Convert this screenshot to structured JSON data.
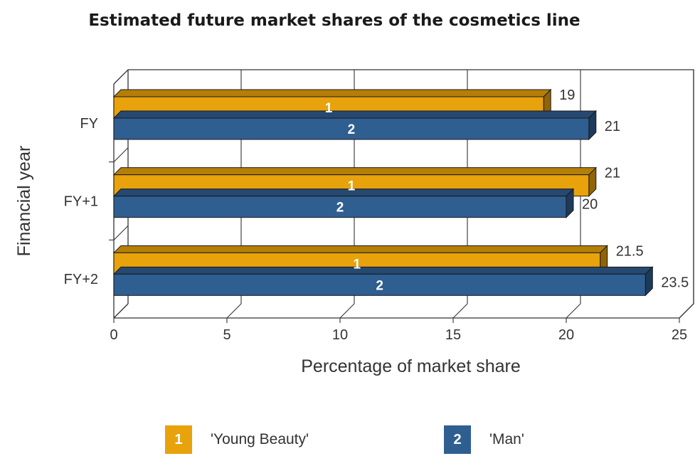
{
  "chart_data": {
    "type": "bar",
    "orientation": "horizontal",
    "title": "Estimated future market shares of the cosmetics line",
    "xlabel": "Percentage of market share",
    "ylabel": "Financial year",
    "categories": [
      "FY",
      "FY+1",
      "FY+2"
    ],
    "xlim": [
      0,
      25
    ],
    "xticks": [
      "0",
      "5",
      "10",
      "15",
      "20",
      "25"
    ],
    "grid": true,
    "style": "3d",
    "series": [
      {
        "name": "'Young Beauty'",
        "marker": "1",
        "color": "#E8A20C",
        "values": [
          19,
          21,
          21.5
        ],
        "value_labels": [
          "19",
          "21",
          "21.5"
        ]
      },
      {
        "name": "'Man'",
        "marker": "2",
        "color": "#2F5E91",
        "values": [
          21,
          20,
          23.5
        ],
        "value_labels": [
          "21",
          "20",
          "23.5"
        ]
      }
    ],
    "legend_position": "bottom"
  }
}
